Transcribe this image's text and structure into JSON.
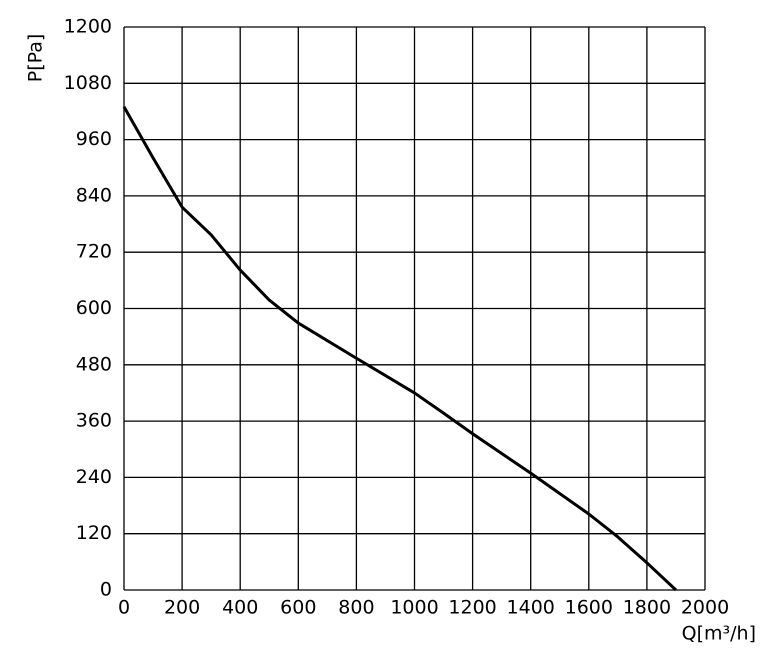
{
  "chart_data": {
    "type": "line",
    "y_label": "P[Pa]",
    "x_label": "Q[m³/h]",
    "x": [
      0,
      100,
      200,
      300,
      400,
      500,
      600,
      800,
      1000,
      1100,
      1200,
      1400,
      1600,
      1700,
      1800,
      1900
    ],
    "series": [
      {
        "color": "#000000",
        "values": [
          1030,
          921,
          816,
          757,
          682,
          618,
          569,
          494,
          420,
          377,
          333,
          249,
          162,
          113,
          58,
          0
        ]
      }
    ],
    "xlim": [
      0,
      2000
    ],
    "xticks": [
      0,
      200,
      400,
      600,
      800,
      1000,
      1200,
      1400,
      1600,
      1800,
      2000
    ],
    "ylim": [
      0,
      1200
    ],
    "yticks": [
      0,
      120,
      240,
      360,
      480,
      600,
      720,
      840,
      960,
      1080,
      1200
    ],
    "grid": true
  }
}
